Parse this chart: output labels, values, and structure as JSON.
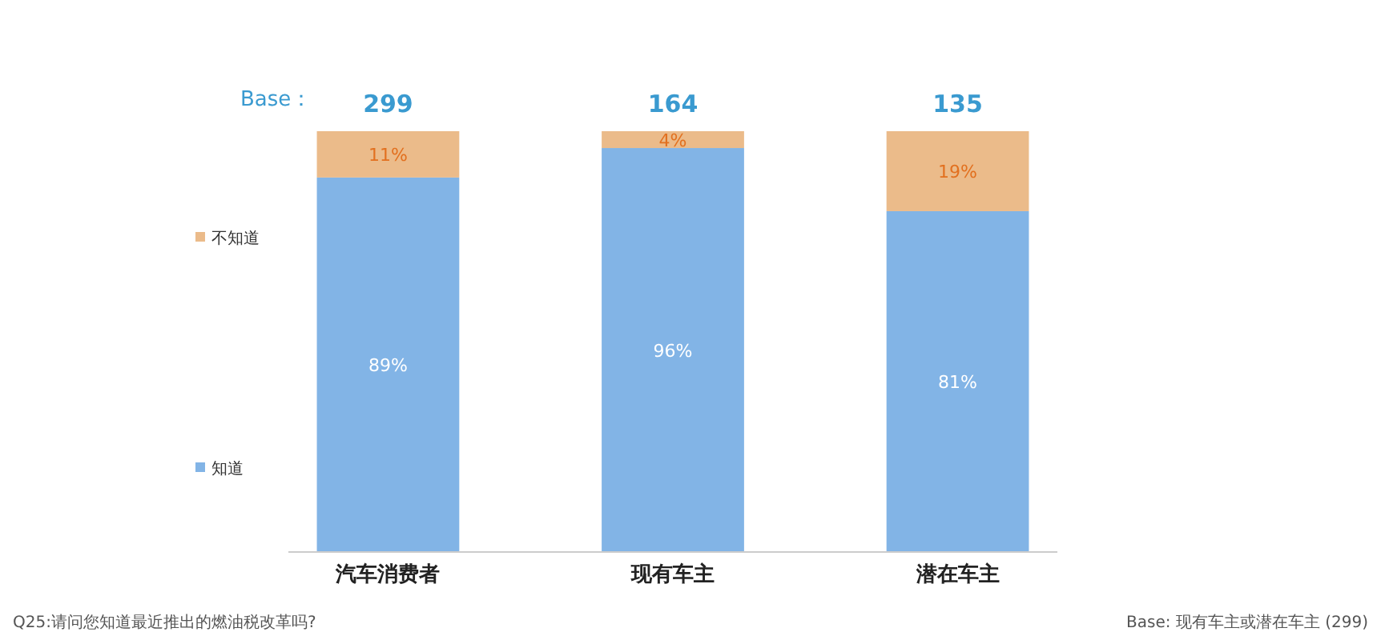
{
  "chart_data": {
    "type": "bar",
    "stacked": true,
    "categories": [
      "汽车消费者",
      "现有车主",
      "潜在车主"
    ],
    "series": [
      {
        "name": "知道",
        "color": "#82b4e6",
        "values": [
          89,
          96,
          81
        ],
        "value_labels": [
          "89%",
          "96%",
          "81%"
        ]
      },
      {
        "name": "不知道",
        "color": "#ebbb8a",
        "values": [
          11,
          4,
          19
        ],
        "value_labels": [
          "11%",
          "4%",
          "19%"
        ]
      }
    ],
    "legend": "left",
    "annotations": [
      "Base：",
      "Q25:请问您知道最近推出的燃油税改革吗?",
      "Base: 现有车主或潜在车主 (299)",
      {
        "text": "299",
        "x": "汽车消费者",
        "y": 100
      },
      {
        "text": "164",
        "x": "现有车主",
        "y": 100
      },
      {
        "text": "135",
        "x": "潜在车主",
        "y": 100
      }
    ]
  }
}
